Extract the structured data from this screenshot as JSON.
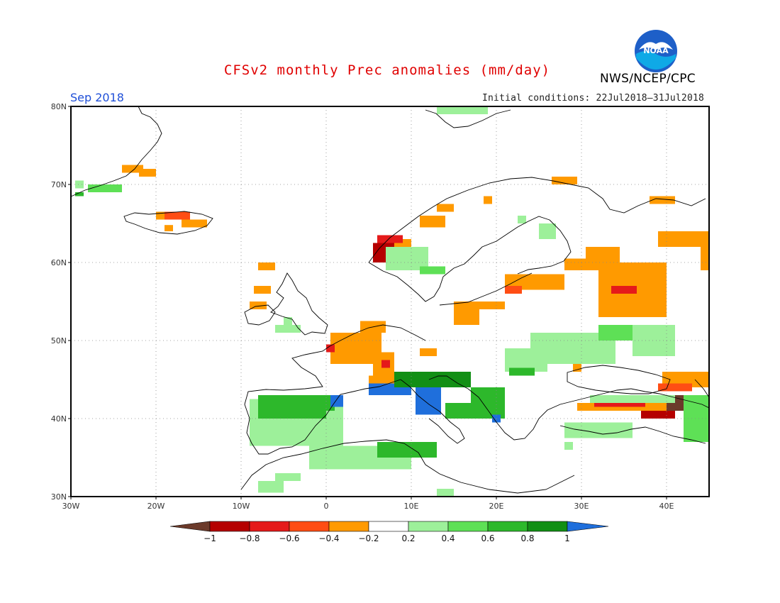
{
  "title": "CFSv2 monthly Prec anomalies (mm/day)",
  "agency": "NWS/NCEP/CPC",
  "logo": {
    "text": "NOAA",
    "icon": "noaa-logo-icon",
    "color": "#1e5fc8"
  },
  "period": "Sep 2018",
  "initial_conditions": "Initial conditions: 22Jul2018–31Jul2018",
  "map": {
    "lon_range": [
      -30,
      45
    ],
    "lat_range": [
      30,
      80
    ],
    "lat_labels": [
      "80N",
      "70N",
      "60N",
      "50N",
      "40N",
      "30N"
    ],
    "lat_values": [
      80,
      70,
      60,
      50,
      40,
      30
    ],
    "lon_labels": [
      "30W",
      "20W",
      "10W",
      "0",
      "10E",
      "20E",
      "30E",
      "40E"
    ],
    "lon_values": [
      -30,
      -20,
      -10,
      0,
      10,
      20,
      30,
      40
    ],
    "grid": true,
    "anomaly_cells": [
      {
        "lon": -29.5,
        "lat": 69.5,
        "w": 1,
        "h": 1,
        "v": 0.3
      },
      {
        "lon": -28,
        "lat": 69,
        "w": 4,
        "h": 1,
        "v": 0.4
      },
      {
        "lon": -29.5,
        "lat": 68.5,
        "w": 1,
        "h": 0.5,
        "v": 0.7
      },
      {
        "lon": -24,
        "lat": 71.5,
        "w": 2.5,
        "h": 1,
        "v": -0.3
      },
      {
        "lon": -22,
        "lat": 71,
        "w": 2,
        "h": 1,
        "v": -0.3
      },
      {
        "lon": -20,
        "lat": 65.5,
        "w": 4,
        "h": 1,
        "v": -0.3
      },
      {
        "lon": -19,
        "lat": 65.5,
        "w": 3,
        "h": 1,
        "v": -0.55
      },
      {
        "lon": -17,
        "lat": 64.5,
        "w": 3,
        "h": 1,
        "v": -0.3
      },
      {
        "lon": -19,
        "lat": 64,
        "w": 1,
        "h": 0.8,
        "v": -0.3
      },
      {
        "lon": -8,
        "lat": 59,
        "w": 2,
        "h": 1,
        "v": -0.3
      },
      {
        "lon": -8.5,
        "lat": 56,
        "w": 2,
        "h": 1,
        "v": -0.3
      },
      {
        "lon": -9,
        "lat": 54,
        "w": 2,
        "h": 1,
        "v": -0.3
      },
      {
        "lon": -5,
        "lat": 52,
        "w": 1,
        "h": 1,
        "v": 0.3
      },
      {
        "lon": -6,
        "lat": 51,
        "w": 3,
        "h": 1,
        "v": 0.3
      },
      {
        "lon": 0.5,
        "lat": 47,
        "w": 6,
        "h": 4,
        "v": -0.3
      },
      {
        "lon": 4,
        "lat": 51,
        "w": 3,
        "h": 1.5,
        "v": -0.3
      },
      {
        "lon": 5.5,
        "lat": 45.5,
        "w": 2.5,
        "h": 3,
        "v": -0.35
      },
      {
        "lon": 6.5,
        "lat": 46.5,
        "w": 1,
        "h": 1,
        "v": -0.6
      },
      {
        "lon": 0,
        "lat": 48.5,
        "w": 1,
        "h": 1,
        "v": -0.65
      },
      {
        "lon": 5,
        "lat": 44.5,
        "w": 3,
        "h": 1,
        "v": -0.3
      },
      {
        "lon": 11,
        "lat": 48,
        "w": 2,
        "h": 1,
        "v": -0.3
      },
      {
        "lon": 7,
        "lat": 62,
        "w": 3,
        "h": 1,
        "v": -0.3
      },
      {
        "lon": 5.5,
        "lat": 60,
        "w": 2.5,
        "h": 2.5,
        "v": -0.85
      },
      {
        "lon": 6,
        "lat": 62.5,
        "w": 3,
        "h": 1,
        "v": -0.6
      },
      {
        "lon": 11,
        "lat": 64.5,
        "w": 3,
        "h": 1.5,
        "v": -0.3
      },
      {
        "lon": 13,
        "lat": 66.5,
        "w": 2,
        "h": 1,
        "v": -0.3
      },
      {
        "lon": 18.5,
        "lat": 67.5,
        "w": 1,
        "h": 1,
        "v": -0.3
      },
      {
        "lon": 26.5,
        "lat": 70,
        "w": 3,
        "h": 1,
        "v": -0.3
      },
      {
        "lon": 28,
        "lat": 59,
        "w": 4,
        "h": 1.5,
        "v": -0.3
      },
      {
        "lon": 21,
        "lat": 56.5,
        "w": 7,
        "h": 2,
        "v": -0.3
      },
      {
        "lon": 21,
        "lat": 56,
        "w": 2,
        "h": 1,
        "v": -0.55
      },
      {
        "lon": 15,
        "lat": 54,
        "w": 6,
        "h": 1,
        "v": -0.3
      },
      {
        "lon": 15,
        "lat": 52,
        "w": 3,
        "h": 2,
        "v": -0.3
      },
      {
        "lon": 32,
        "lat": 53,
        "w": 8,
        "h": 7,
        "v": -0.3
      },
      {
        "lon": 30.5,
        "lat": 59,
        "w": 4,
        "h": 3,
        "v": -0.3
      },
      {
        "lon": 39,
        "lat": 62,
        "w": 6,
        "h": 2,
        "v": -0.3
      },
      {
        "lon": 38,
        "lat": 67.5,
        "w": 3,
        "h": 1,
        "v": -0.3
      },
      {
        "lon": 33.5,
        "lat": 56,
        "w": 3,
        "h": 1,
        "v": -0.6
      },
      {
        "lon": 44,
        "lat": 59,
        "w": 1,
        "h": 3,
        "v": -0.3
      },
      {
        "lon": 29,
        "lat": 46,
        "w": 1,
        "h": 2,
        "v": -0.3
      },
      {
        "lon": 39.5,
        "lat": 44,
        "w": 6,
        "h": 2,
        "v": -0.3
      },
      {
        "lon": 29.5,
        "lat": 41,
        "w": 12,
        "h": 1,
        "v": -0.3
      },
      {
        "lon": 31.5,
        "lat": 41.5,
        "w": 6,
        "h": 1,
        "v": -0.75
      },
      {
        "lon": 37,
        "lat": 40,
        "w": 4,
        "h": 1,
        "v": -0.9
      },
      {
        "lon": 40,
        "lat": 41,
        "w": 2,
        "h": 2,
        "v": -1.1
      },
      {
        "lon": 39,
        "lat": 43.5,
        "w": 4,
        "h": 1,
        "v": -0.55
      },
      {
        "lon": -9,
        "lat": 36.5,
        "w": 11,
        "h": 6,
        "v": 0.3
      },
      {
        "lon": -8,
        "lat": 40,
        "w": 8,
        "h": 3,
        "v": 0.75
      },
      {
        "lon": -3,
        "lat": 41,
        "w": 4,
        "h": 2,
        "v": 0.65
      },
      {
        "lon": 0.5,
        "lat": 41.5,
        "w": 1.5,
        "h": 1.5,
        "v": 1.1
      },
      {
        "lon": 5,
        "lat": 43,
        "w": 5,
        "h": 1.5,
        "v": 1.1
      },
      {
        "lon": 10.5,
        "lat": 40.5,
        "w": 3,
        "h": 4,
        "v": 1.1
      },
      {
        "lon": 8,
        "lat": 44,
        "w": 9,
        "h": 2,
        "v": 0.8
      },
      {
        "lon": 14,
        "lat": 40,
        "w": 3,
        "h": 2,
        "v": 0.6
      },
      {
        "lon": 17,
        "lat": 40,
        "w": 4,
        "h": 4,
        "v": 0.6
      },
      {
        "lon": 19.5,
        "lat": 39.5,
        "w": 1,
        "h": 1,
        "v": 1.1
      },
      {
        "lon": 21,
        "lat": 46,
        "w": 5,
        "h": 3,
        "v": 0.3
      },
      {
        "lon": 21.5,
        "lat": 45.5,
        "w": 3,
        "h": 1,
        "v": 0.75
      },
      {
        "lon": 24,
        "lat": 47,
        "w": 10,
        "h": 4,
        "v": 0.3
      },
      {
        "lon": 32,
        "lat": 50,
        "w": 5,
        "h": 2,
        "v": 0.5
      },
      {
        "lon": 36,
        "lat": 48,
        "w": 5,
        "h": 4,
        "v": 0.3
      },
      {
        "lon": 31,
        "lat": 42,
        "w": 10,
        "h": 1,
        "v": 0.3
      },
      {
        "lon": 28,
        "lat": 37.5,
        "w": 8,
        "h": 2,
        "v": 0.3
      },
      {
        "lon": 42,
        "lat": 37,
        "w": 3,
        "h": 6,
        "v": 0.4
      },
      {
        "lon": 7,
        "lat": 59,
        "w": 5,
        "h": 3,
        "v": 0.3
      },
      {
        "lon": 11,
        "lat": 58.5,
        "w": 3,
        "h": 1,
        "v": 0.45
      },
      {
        "lon": 25,
        "lat": 63,
        "w": 2,
        "h": 2,
        "v": 0.3
      },
      {
        "lon": 13,
        "lat": 79,
        "w": 6,
        "h": 1,
        "v": 0.3
      },
      {
        "lon": 22.5,
        "lat": 65,
        "w": 1,
        "h": 1,
        "v": 0.3
      },
      {
        "lon": -2,
        "lat": 33.5,
        "w": 12,
        "h": 3,
        "v": 0.3
      },
      {
        "lon": 6,
        "lat": 35,
        "w": 7,
        "h": 2,
        "v": 0.7
      },
      {
        "lon": -6,
        "lat": 32,
        "w": 3,
        "h": 1,
        "v": 0.3
      },
      {
        "lon": -8,
        "lat": 30.5,
        "w": 3,
        "h": 1.5,
        "v": 0.3
      },
      {
        "lon": 13,
        "lat": 30,
        "w": 2,
        "h": 1,
        "v": 0.3
      },
      {
        "lon": 28,
        "lat": 36,
        "w": 1,
        "h": 1,
        "v": 0.3
      }
    ]
  },
  "colorbar": {
    "labels": [
      "−1",
      "−0.8",
      "−0.6",
      "−0.4",
      "−0.2",
      "0.2",
      "0.4",
      "0.6",
      "0.8",
      "1"
    ],
    "colors": [
      "#6b3a2a",
      "#b50000",
      "#e51a1a",
      "#ff4d14",
      "#ff9a00",
      "#ffffff",
      "#9df09a",
      "#5ee056",
      "#2db82b",
      "#128f15",
      "#1f6fdc"
    ]
  }
}
